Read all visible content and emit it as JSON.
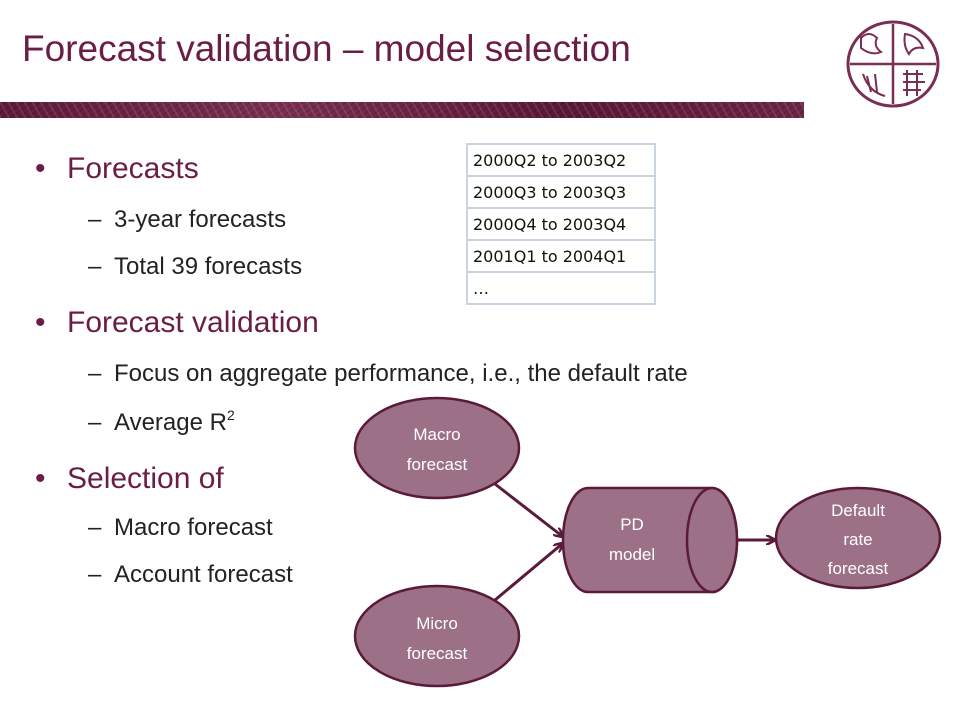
{
  "slide": {
    "title": "Forecast validation – model selection"
  },
  "bullets": [
    {
      "text": "Forecasts",
      "subitems": [
        "3-year forecasts",
        "Total 39 forecasts"
      ]
    },
    {
      "text": "Forecast validation",
      "subitems": [
        "Focus on aggregate performance, i.e., the default rate",
        "Average R"
      ]
    },
    {
      "text": "Selection of",
      "subitems": [
        "Macro forecast",
        "Account forecast"
      ]
    }
  ],
  "superscript": "2",
  "periods_table": [
    "2000Q2 to 2003Q2",
    "2000Q3 to 2003Q3",
    "2000Q4 to 2003Q4",
    "2001Q1 to 2004Q1",
    "…"
  ],
  "diagram": {
    "macro": [
      "Macro",
      "forecast"
    ],
    "micro": [
      "Micro",
      "forecast"
    ],
    "pd": [
      "PD",
      "model"
    ],
    "output": [
      "Default",
      "rate",
      "forecast"
    ]
  },
  "colors": {
    "title": "#6b1e45",
    "node_fill": "#9c7187",
    "node_stroke": "#5a1a3a",
    "arrow": "#5a1a3a",
    "table_border": "#c9d3e3"
  }
}
